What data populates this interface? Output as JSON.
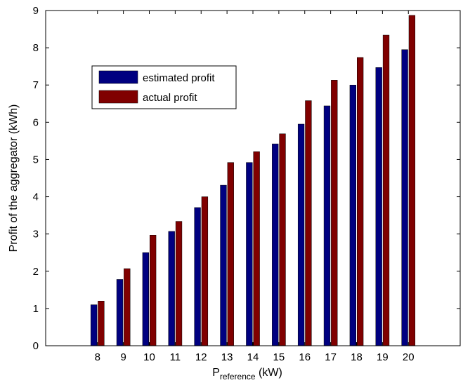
{
  "chart_data": {
    "type": "bar",
    "categories": [
      "8",
      "9",
      "10",
      "11",
      "12",
      "13",
      "14",
      "15",
      "16",
      "17",
      "18",
      "19",
      "20"
    ],
    "series": [
      {
        "name": "estimated profit",
        "color": "#000080",
        "values": [
          1.1,
          1.78,
          2.5,
          3.07,
          3.71,
          4.31,
          4.92,
          5.42,
          5.95,
          6.44,
          7.0,
          7.47,
          7.95
        ]
      },
      {
        "name": "actual profit",
        "color": "#800000",
        "values": [
          1.2,
          2.07,
          2.97,
          3.34,
          4.0,
          4.92,
          5.21,
          5.69,
          6.58,
          7.13,
          7.74,
          8.34,
          8.87
        ]
      }
    ],
    "xlabel_main": "P",
    "xlabel_sub": "reference",
    "xlabel_unit": " (kW)",
    "ylabel": "Profit of the aggregator (kWh)",
    "ylim": [
      0,
      9
    ],
    "yticks": [
      "0",
      "1",
      "2",
      "3",
      "4",
      "5",
      "6",
      "7",
      "8",
      "9"
    ],
    "xlim": [
      6,
      22
    ],
    "grid": false,
    "legend_position": "top-left"
  }
}
